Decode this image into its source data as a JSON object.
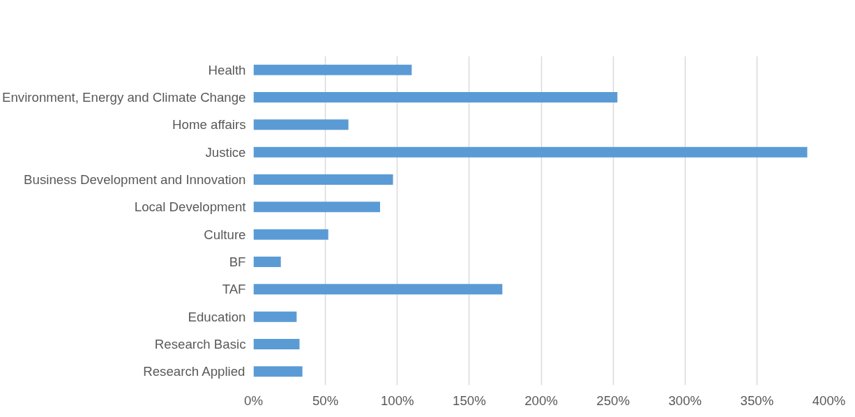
{
  "chart_data": {
    "type": "bar",
    "orientation": "horizontal",
    "categories": [
      "Health",
      "Environment, Energy and Climate Change",
      "Home affairs",
      "Justice",
      "Business Development and Innovation",
      "Local Development",
      "Culture",
      "BF",
      "TAF",
      "Education",
      "Research Basic",
      "Research Applied"
    ],
    "values": [
      110,
      253,
      66,
      385,
      97,
      88,
      52,
      19,
      173,
      30,
      32,
      34
    ],
    "color": "#5b9bd5",
    "xlim": [
      0,
      400
    ],
    "xticks": [
      {
        "value": 0,
        "label": "0%"
      },
      {
        "value": 50,
        "label": "50%"
      },
      {
        "value": 100,
        "label": "100%"
      },
      {
        "value": 150,
        "label": "150%"
      },
      {
        "value": 200,
        "label": "200%"
      },
      {
        "value": 250,
        "label": "250%"
      },
      {
        "value": 300,
        "label": "300%"
      },
      {
        "value": 350,
        "label": "350%"
      },
      {
        "value": 400,
        "label": "400%"
      }
    ],
    "grid": "x"
  }
}
